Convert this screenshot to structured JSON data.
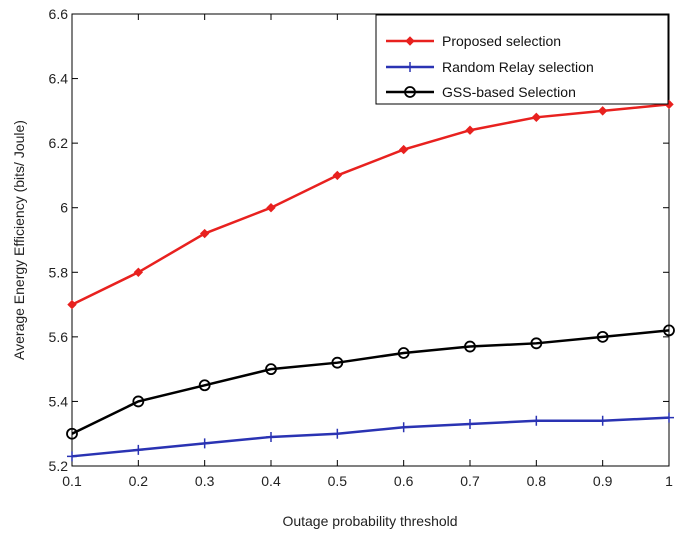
{
  "chart_data": {
    "type": "line",
    "title": "",
    "xlabel": "Outage probability threshold",
    "ylabel": "Average Energy Efficiency (bits/ Joule)",
    "x": [
      0.1,
      0.2,
      0.3,
      0.4,
      0.5,
      0.6,
      0.7,
      0.8,
      0.9,
      1.0
    ],
    "xlim": [
      0.1,
      1.0
    ],
    "ylim": [
      5.2,
      6.6
    ],
    "xticks": [
      "0.1",
      "0.2",
      "0.3",
      "0.4",
      "0.5",
      "0.6",
      "0.7",
      "0.8",
      "0.9",
      "1"
    ],
    "yticks": [
      "5.2",
      "5.4",
      "5.6",
      "5.8",
      "6",
      "6.2",
      "6.4",
      "6.6"
    ],
    "ytick_values": [
      5.2,
      5.4,
      5.6,
      5.8,
      6.0,
      6.2,
      6.4,
      6.6
    ],
    "grid": false,
    "legend_position": "top-right",
    "series": [
      {
        "name": "Proposed selection",
        "color": "#e8211f",
        "marker": "diamond",
        "values": [
          5.7,
          5.8,
          5.92,
          6.0,
          6.1,
          6.18,
          6.24,
          6.28,
          6.3,
          6.32
        ]
      },
      {
        "name": "Random Relay selection",
        "color": "#2a33b3",
        "marker": "plus",
        "values": [
          5.23,
          5.25,
          5.27,
          5.29,
          5.3,
          5.32,
          5.33,
          5.34,
          5.34,
          5.35
        ]
      },
      {
        "name": "GSS-based Selection",
        "color": "#000000",
        "marker": "circle",
        "values": [
          5.3,
          5.4,
          5.45,
          5.5,
          5.52,
          5.55,
          5.57,
          5.58,
          5.6,
          5.62
        ]
      }
    ]
  }
}
